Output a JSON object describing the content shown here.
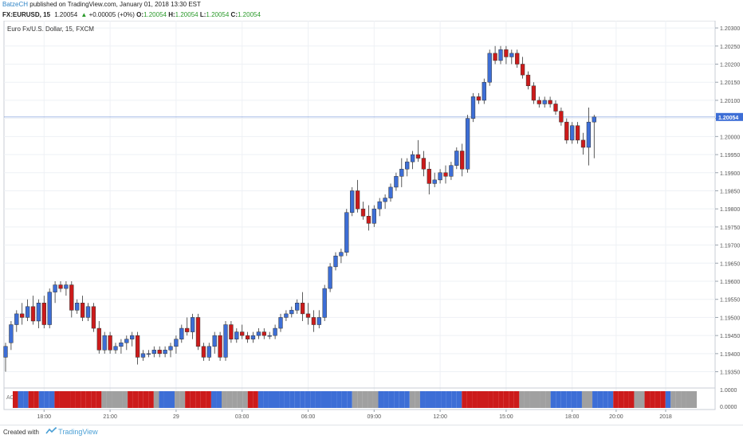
{
  "header": {
    "author": "BatzeCH",
    "published": " published on TradingView.com, January 01, 2018 13:30 EST"
  },
  "quote": {
    "symbol": "FX:EURUSD, 15",
    "last": "1.20054",
    "arrow": "▲",
    "change": "+0.00005 (+0%)",
    "o_label": "O:",
    "o_value": "1.20054",
    "h_label": "H:",
    "h_value": "1.20054",
    "l_label": "L:",
    "l_value": "1.20054",
    "c_label": "C:",
    "c_value": "1.20054"
  },
  "footer": {
    "created": "Created with",
    "brand": "TradingView"
  },
  "colors": {
    "up": "#3d6ed6",
    "down": "#cc1b1b",
    "neutral": "#a0a0a0",
    "price_line": "#6b8fd6"
  },
  "chart_data": {
    "type": "candlestick",
    "title": "Euro Fx/U.S. Dollar, 15, FXCM",
    "y_axis": {
      "range": [
        1.19305,
        1.2032
      ],
      "ticks": [
        "1.20300",
        "1.20250",
        "1.20200",
        "1.20150",
        "1.20100",
        "1.20050",
        "1.20000",
        "1.19950",
        "1.19900",
        "1.19850",
        "1.19800",
        "1.19750",
        "1.19700",
        "1.19650",
        "1.19600",
        "1.19550",
        "1.19500",
        "1.19450",
        "1.19400",
        "1.19350"
      ]
    },
    "x_axis": {
      "ticks": [
        {
          "label": "18:00",
          "bar": 7
        },
        {
          "label": "21:00",
          "bar": 19
        },
        {
          "label": "29",
          "bar": 31
        },
        {
          "label": "03:00",
          "bar": 43
        },
        {
          "label": "06:00",
          "bar": 55
        },
        {
          "label": "09:00",
          "bar": 67
        },
        {
          "label": "12:00",
          "bar": 79
        },
        {
          "label": "15:00",
          "bar": 91
        },
        {
          "label": "18:00",
          "bar": 103
        },
        {
          "label": "20:00",
          "bar": 111
        },
        {
          "label": "2018",
          "bar": 120
        }
      ]
    },
    "current_price": "1.20054",
    "indicator": {
      "label": "AC",
      "ticks": [
        "1.0000",
        "0.0000"
      ]
    },
    "candles": [
      [
        1.1939,
        1.1943,
        1.1935,
        1.1942
      ],
      [
        1.1943,
        1.1949,
        1.1941,
        1.1948
      ],
      [
        1.1948,
        1.1952,
        1.1946,
        1.1951
      ],
      [
        1.1951,
        1.1954,
        1.1948,
        1.195
      ],
      [
        1.195,
        1.1955,
        1.1949,
        1.1953
      ],
      [
        1.1953,
        1.1956,
        1.1948,
        1.1949
      ],
      [
        1.1949,
        1.1955,
        1.1947,
        1.1954
      ],
      [
        1.1954,
        1.1956,
        1.1947,
        1.1948
      ],
      [
        1.1948,
        1.1958,
        1.1947,
        1.1957
      ],
      [
        1.1957,
        1.196,
        1.1954,
        1.1959
      ],
      [
        1.1959,
        1.196,
        1.1957,
        1.1958
      ],
      [
        1.1958,
        1.196,
        1.1956,
        1.1959
      ],
      [
        1.1959,
        1.196,
        1.195,
        1.1952
      ],
      [
        1.1952,
        1.1955,
        1.1951,
        1.1954
      ],
      [
        1.1954,
        1.1956,
        1.1949,
        1.195
      ],
      [
        1.195,
        1.1954,
        1.1949,
        1.1953
      ],
      [
        1.1953,
        1.1954,
        1.1946,
        1.1947
      ],
      [
        1.1947,
        1.1949,
        1.194,
        1.1941
      ],
      [
        1.1941,
        1.1946,
        1.194,
        1.1945
      ],
      [
        1.1945,
        1.1946,
        1.194,
        1.1941
      ],
      [
        1.1941,
        1.1943,
        1.194,
        1.1942
      ],
      [
        1.1942,
        1.1944,
        1.194,
        1.1943
      ],
      [
        1.1943,
        1.1945,
        1.1941,
        1.1944
      ],
      [
        1.1944,
        1.1946,
        1.1942,
        1.1945
      ],
      [
        1.1945,
        1.1946,
        1.1937,
        1.1939
      ],
      [
        1.1939,
        1.1941,
        1.1938,
        1.194
      ],
      [
        1.194,
        1.1941,
        1.1939,
        1.194
      ],
      [
        1.194,
        1.1942,
        1.1939,
        1.1941
      ],
      [
        1.1941,
        1.1942,
        1.1939,
        1.194
      ],
      [
        1.194,
        1.1942,
        1.1939,
        1.1941
      ],
      [
        1.1941,
        1.1943,
        1.1939,
        1.1942
      ],
      [
        1.1942,
        1.1945,
        1.194,
        1.1944
      ],
      [
        1.1944,
        1.1948,
        1.1943,
        1.1947
      ],
      [
        1.1947,
        1.195,
        1.1945,
        1.1946
      ],
      [
        1.1946,
        1.1951,
        1.1944,
        1.195
      ],
      [
        1.195,
        1.1951,
        1.1941,
        1.1942
      ],
      [
        1.1942,
        1.1943,
        1.1938,
        1.1939
      ],
      [
        1.1939,
        1.1943,
        1.1938,
        1.1942
      ],
      [
        1.1942,
        1.1946,
        1.194,
        1.1945
      ],
      [
        1.1945,
        1.1946,
        1.1938,
        1.1939
      ],
      [
        1.1939,
        1.1949,
        1.1938,
        1.1948
      ],
      [
        1.1948,
        1.1949,
        1.1943,
        1.1944
      ],
      [
        1.1944,
        1.1947,
        1.1943,
        1.1946
      ],
      [
        1.1946,
        1.1948,
        1.1944,
        1.1945
      ],
      [
        1.1945,
        1.1946,
        1.1943,
        1.1944
      ],
      [
        1.1944,
        1.1946,
        1.1943,
        1.1945
      ],
      [
        1.1945,
        1.1947,
        1.1944,
        1.1946
      ],
      [
        1.1946,
        1.1947,
        1.1944,
        1.1945
      ],
      [
        1.1945,
        1.1946,
        1.1944,
        1.1945
      ],
      [
        1.1945,
        1.1948,
        1.1944,
        1.1947
      ],
      [
        1.1947,
        1.1951,
        1.1946,
        1.195
      ],
      [
        1.195,
        1.1952,
        1.1949,
        1.1951
      ],
      [
        1.1951,
        1.1953,
        1.195,
        1.1952
      ],
      [
        1.1952,
        1.1955,
        1.1951,
        1.1954
      ],
      [
        1.1954,
        1.1957,
        1.1949,
        1.1951
      ],
      [
        1.1951,
        1.1954,
        1.1948,
        1.195
      ],
      [
        1.195,
        1.1952,
        1.1946,
        1.1948
      ],
      [
        1.1948,
        1.1952,
        1.1947,
        1.195
      ],
      [
        1.195,
        1.1959,
        1.1949,
        1.1958
      ],
      [
        1.1958,
        1.1965,
        1.1957,
        1.1964
      ],
      [
        1.1964,
        1.1968,
        1.1963,
        1.1967
      ],
      [
        1.1967,
        1.1969,
        1.1965,
        1.1968
      ],
      [
        1.1968,
        1.198,
        1.1967,
        1.1979
      ],
      [
        1.1979,
        1.1986,
        1.1978,
        1.1985
      ],
      [
        1.1985,
        1.1988,
        1.1979,
        1.198
      ],
      [
        1.198,
        1.1982,
        1.1977,
        1.1978
      ],
      [
        1.1978,
        1.1981,
        1.1974,
        1.1976
      ],
      [
        1.1976,
        1.1981,
        1.1975,
        1.198
      ],
      [
        1.198,
        1.1983,
        1.1978,
        1.1982
      ],
      [
        1.1982,
        1.1984,
        1.198,
        1.1983
      ],
      [
        1.1983,
        1.1987,
        1.1982,
        1.1986
      ],
      [
        1.1986,
        1.199,
        1.1985,
        1.1989
      ],
      [
        1.1989,
        1.1994,
        1.1986,
        1.1991
      ],
      [
        1.1991,
        1.1994,
        1.1989,
        1.1993
      ],
      [
        1.1993,
        1.1996,
        1.1991,
        1.1995
      ],
      [
        1.1995,
        1.1999,
        1.1993,
        1.1994
      ],
      [
        1.1994,
        1.1996,
        1.1989,
        1.1991
      ],
      [
        1.1991,
        1.1993,
        1.1984,
        1.1987
      ],
      [
        1.1987,
        1.199,
        1.1986,
        1.1988
      ],
      [
        1.1988,
        1.1991,
        1.1987,
        1.199
      ],
      [
        1.199,
        1.1992,
        1.1987,
        1.1989
      ],
      [
        1.1989,
        1.1993,
        1.1988,
        1.1992
      ],
      [
        1.1992,
        1.1997,
        1.1991,
        1.1996
      ],
      [
        1.1996,
        1.1998,
        1.1989,
        1.1991
      ],
      [
        1.1991,
        1.2006,
        1.199,
        1.2005
      ],
      [
        1.2005,
        1.2012,
        1.2004,
        1.2011
      ],
      [
        1.2011,
        1.2012,
        1.2009,
        1.201
      ],
      [
        1.201,
        1.2016,
        1.2009,
        1.2015
      ],
      [
        1.2015,
        1.2024,
        1.2014,
        1.2023
      ],
      [
        1.2023,
        1.2025,
        1.202,
        1.2021
      ],
      [
        1.2021,
        1.2025,
        1.202,
        1.2024
      ],
      [
        1.2024,
        1.2025,
        1.202,
        1.2022
      ],
      [
        1.2022,
        1.2024,
        1.202,
        1.2023
      ],
      [
        1.2023,
        1.2024,
        1.2019,
        1.202
      ],
      [
        1.202,
        1.2022,
        1.2016,
        1.2017
      ],
      [
        1.2017,
        1.2018,
        1.2013,
        1.2014
      ],
      [
        1.2014,
        1.2015,
        1.2009,
        1.201
      ],
      [
        1.201,
        1.2011,
        1.2008,
        1.2009
      ],
      [
        1.2009,
        1.2011,
        1.2008,
        1.201
      ],
      [
        1.201,
        1.2011,
        1.2008,
        1.2009
      ],
      [
        1.2009,
        1.201,
        1.2006,
        1.2007
      ],
      [
        1.2007,
        1.2008,
        1.2003,
        1.2004
      ],
      [
        1.2004,
        1.2005,
        1.1998,
        1.1999
      ],
      [
        1.1999,
        1.2004,
        1.1998,
        1.2003
      ],
      [
        1.2003,
        1.2004,
        1.1998,
        1.1999
      ],
      [
        1.1999,
        1.2001,
        1.1995,
        1.1997
      ],
      [
        1.1997,
        1.2008,
        1.1992,
        1.2004
      ],
      [
        1.2004,
        1.2006,
        1.1994,
        1.20054
      ]
    ],
    "indicator_colors": "RBBRRBBBRRRRRRRRRGGGGGRRRRRGBBBGGRRRRRBBGGGGGRRBBBBBBBBBBBBBBBBBBGGGGGBBBBBBGGBBBBBBBBRRRRRRRRRRRGGGGGGBBBBBBGGBBBBRRRRGGRRRRBGGGGG"
  }
}
